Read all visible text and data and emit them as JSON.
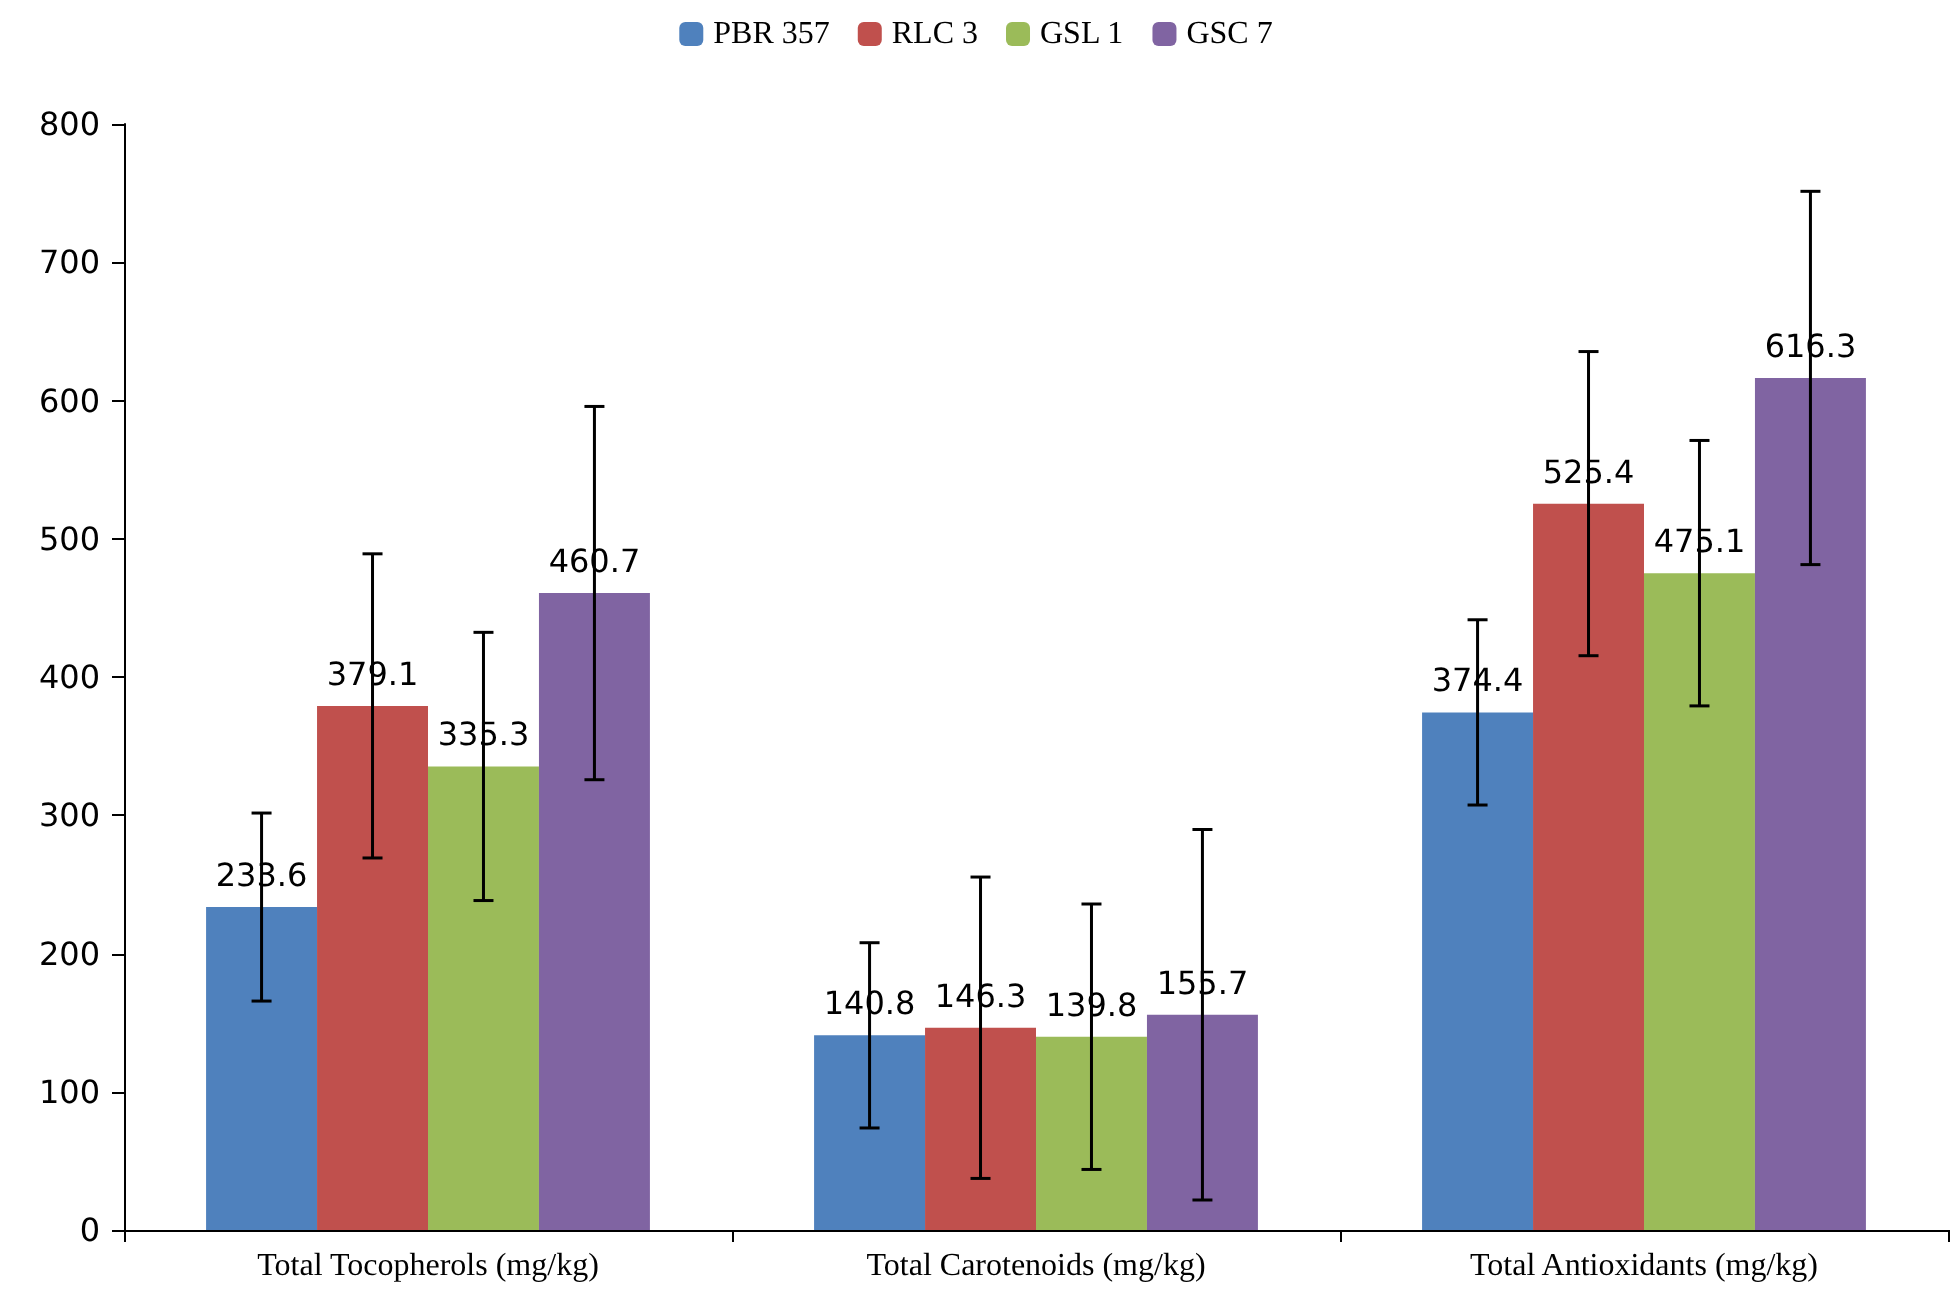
{
  "chart_data": {
    "type": "bar",
    "categories": [
      "Total Tocopherols (mg/kg)",
      "Total Carotenoids (mg/kg)",
      "Total Antioxidants (mg/kg)"
    ],
    "series": [
      {
        "name": "PBR 357",
        "color": "#4f81bd",
        "values": [
          233.6,
          140.8,
          374.4
        ],
        "errors": [
          68,
          67,
          67
        ]
      },
      {
        "name": "RLC 3",
        "color": "#c0504d",
        "values": [
          379.1,
          146.3,
          525.4
        ],
        "errors": [
          110,
          109,
          110
        ]
      },
      {
        "name": "GSL 1",
        "color": "#9bbb59",
        "values": [
          335.3,
          139.8,
          475.1
        ],
        "errors": [
          97,
          96,
          96
        ]
      },
      {
        "name": "GSC 7",
        "color": "#8064a2",
        "values": [
          460.7,
          155.7,
          616.3
        ],
        "errors": [
          135,
          134,
          135
        ]
      }
    ],
    "ylim": [
      0,
      800
    ],
    "yticks": [
      0,
      100,
      200,
      300,
      400,
      500,
      600,
      700,
      800
    ],
    "grid": false,
    "legend": "top",
    "data_labels": true
  }
}
